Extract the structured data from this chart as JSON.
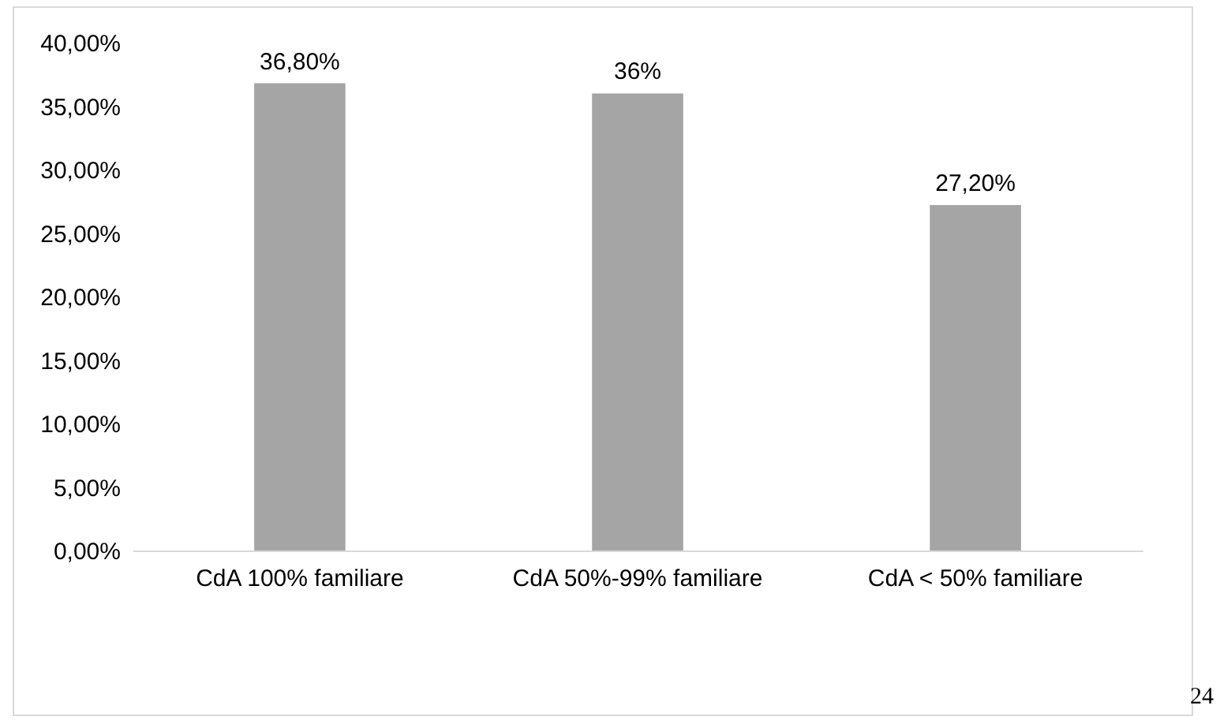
{
  "chart_data": {
    "type": "bar",
    "categories": [
      "CdA 100% familiare",
      "CdA 50%-99% familiare",
      "CdA < 50% familiare"
    ],
    "values": [
      36.8,
      36,
      27.2
    ],
    "color": "#a5a5a5",
    "value_labels": [
      "36,80%",
      "36%",
      "27,20%"
    ],
    "ylim": [
      0,
      40
    ],
    "yticks": [
      {
        "value": 0,
        "label": "0,00%"
      },
      {
        "value": 5,
        "label": "5,00%"
      },
      {
        "value": 10,
        "label": "10,00%"
      },
      {
        "value": 15,
        "label": "15,00%"
      },
      {
        "value": 20,
        "label": "20,00%"
      },
      {
        "value": 25,
        "label": "25,00%"
      },
      {
        "value": 30,
        "label": "30,00%"
      },
      {
        "value": 35,
        "label": "35,00%"
      },
      {
        "value": 40,
        "label": "40,00%"
      }
    ],
    "annotations": [
      "24"
    ]
  }
}
